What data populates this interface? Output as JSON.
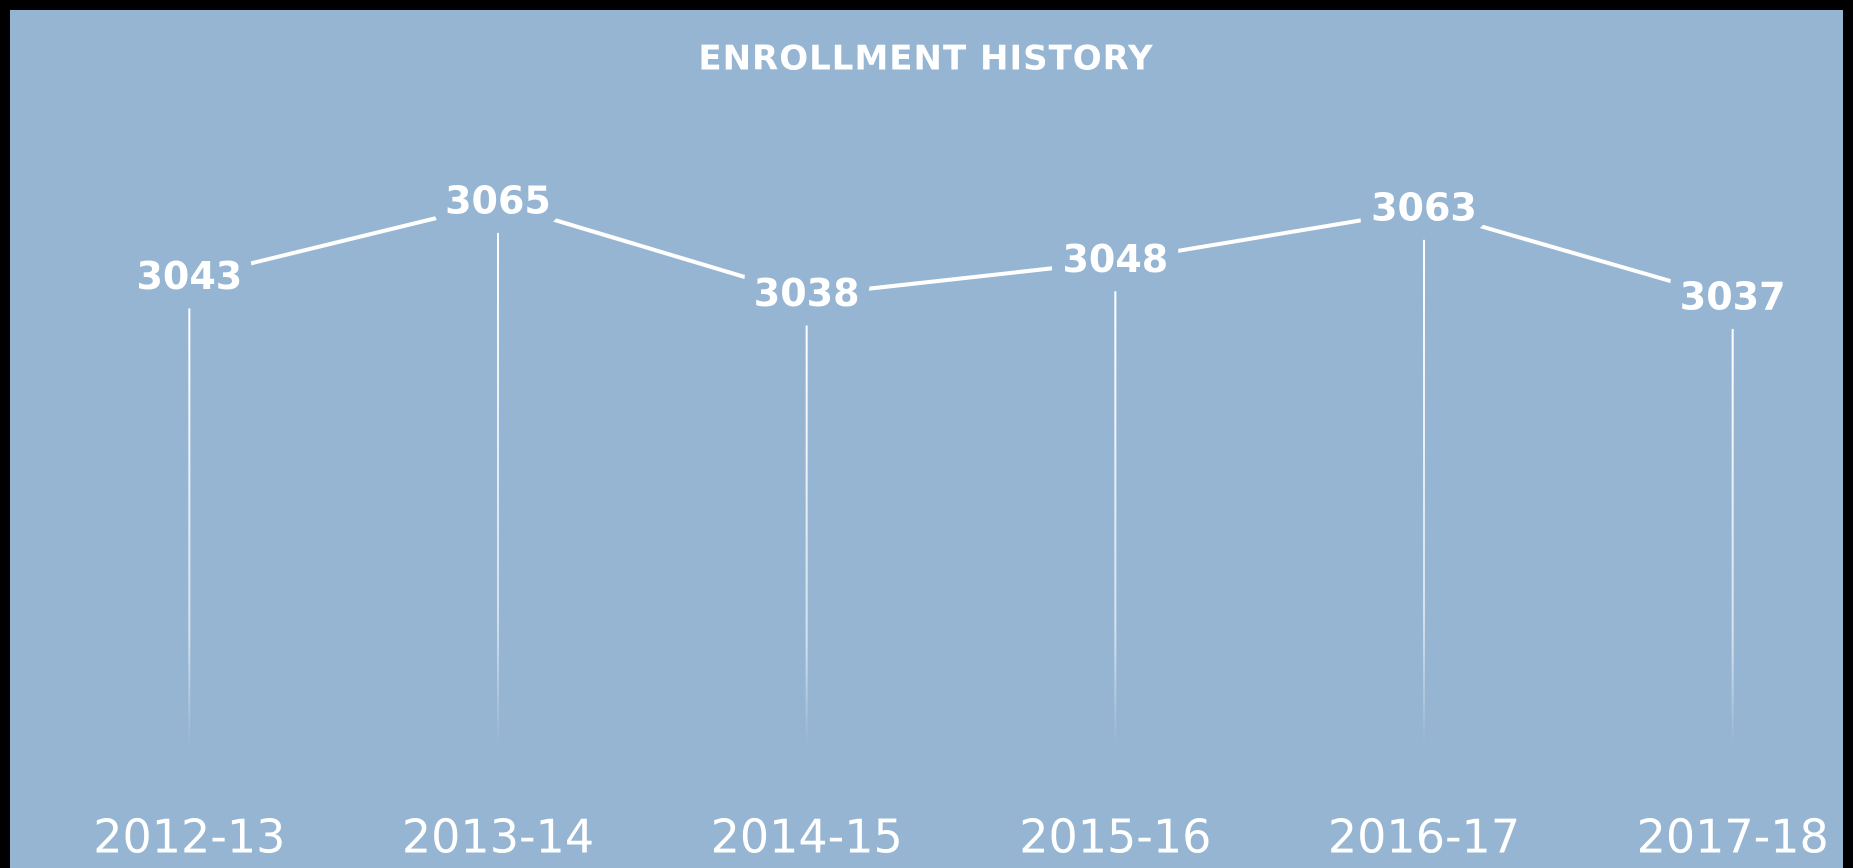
{
  "chart_data": {
    "type": "line",
    "title": "ENROLLMENT HISTORY",
    "categories": [
      "2012-13",
      "2013-14",
      "2014-15",
      "2015-16",
      "2016-17",
      "2017-18"
    ],
    "values": [
      3043,
      3065,
      3038,
      3048,
      3063,
      3037
    ],
    "color": "#ffffff"
  }
}
